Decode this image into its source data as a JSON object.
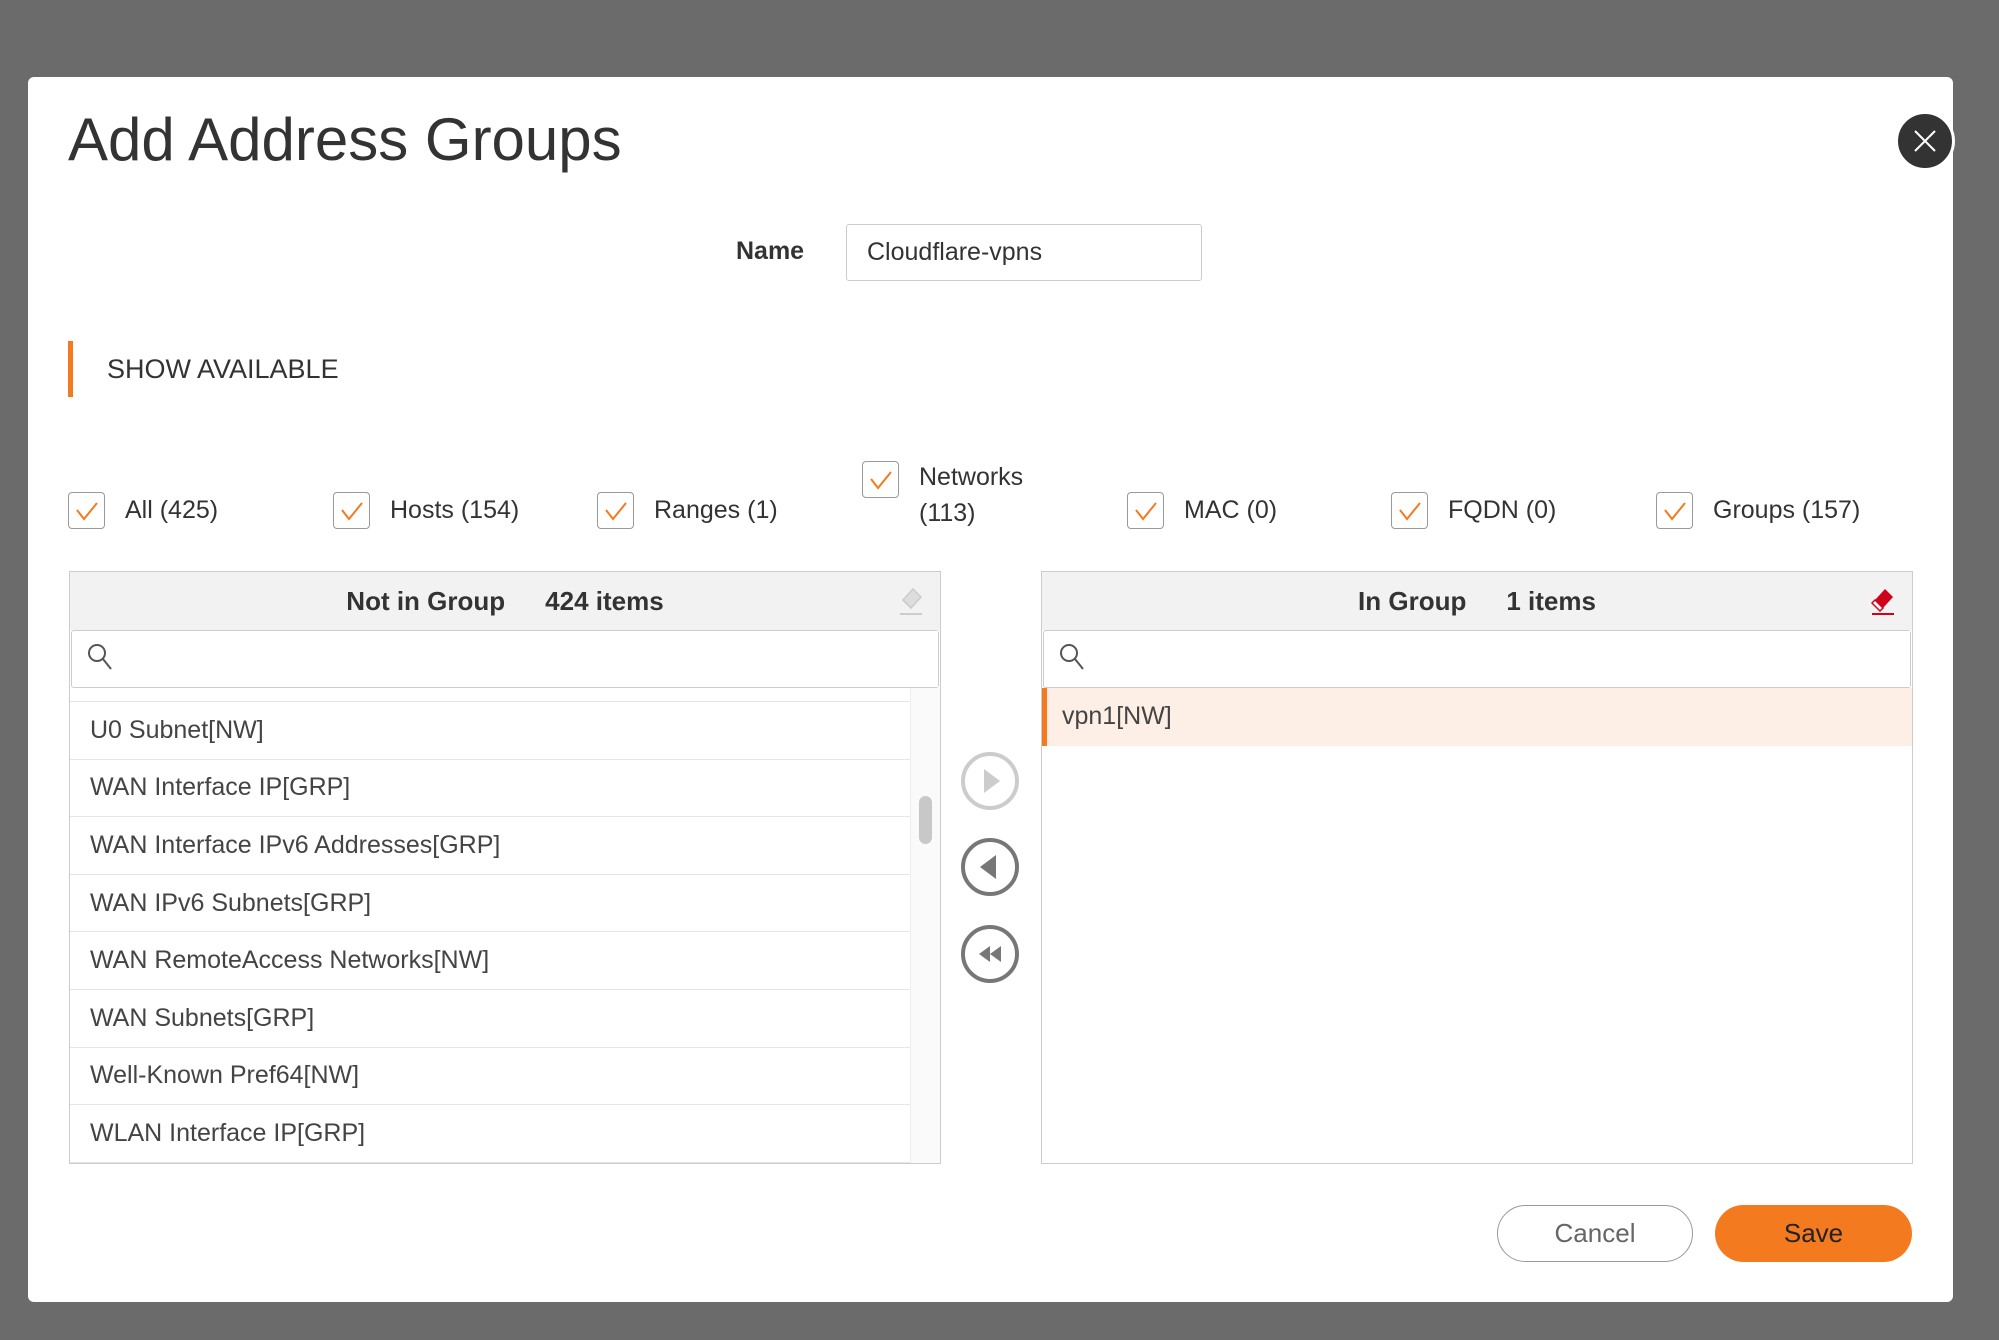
{
  "dialog": {
    "title": "Add Address Groups"
  },
  "form": {
    "name_label": "Name",
    "name_value": "Cloudflare-vpns"
  },
  "section": {
    "label": "SHOW AVAILABLE"
  },
  "filters": [
    {
      "label": "All (425)",
      "checked": true
    },
    {
      "label": "Hosts (154)",
      "checked": true
    },
    {
      "label": "Ranges (1)",
      "checked": true
    },
    {
      "label": "Networks (113)",
      "checked": true
    },
    {
      "label": "MAC (0)",
      "checked": true
    },
    {
      "label": "FQDN (0)",
      "checked": true
    },
    {
      "label": "Groups (157)",
      "checked": true
    }
  ],
  "left_panel": {
    "title": "Not in Group",
    "count": "424 items",
    "search_placeholder": "",
    "items": [
      "U0 Subnet[NW]",
      "WAN Interface IP[GRP]",
      "WAN Interface IPv6 Addresses[GRP]",
      "WAN IPv6 Subnets[GRP]",
      "WAN RemoteAccess Networks[NW]",
      "WAN Subnets[GRP]",
      "Well-Known Pref64[NW]",
      "WLAN Interface IP[GRP]"
    ]
  },
  "right_panel": {
    "title": "In Group",
    "count": "1 items",
    "search_placeholder": "",
    "items": [
      "vpn1[NW]"
    ]
  },
  "buttons": {
    "cancel": "Cancel",
    "save": "Save"
  },
  "colors": {
    "accent": "#f47a20",
    "eraser_active": "#d0021b",
    "selected_row": "#fdefe6"
  }
}
